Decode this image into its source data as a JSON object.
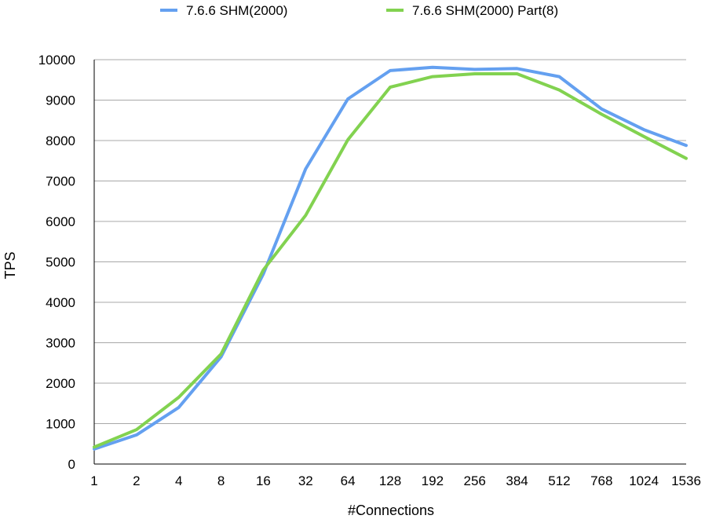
{
  "chart_data": {
    "type": "line",
    "xlabel": "#Connections",
    "ylabel": "TPS",
    "categories": [
      "1",
      "2",
      "4",
      "8",
      "16",
      "32",
      "64",
      "128",
      "192",
      "256",
      "384",
      "512",
      "768",
      "1024",
      "1536"
    ],
    "ylim": [
      0,
      10000
    ],
    "yticks": [
      "0",
      "1000",
      "2000",
      "3000",
      "4000",
      "5000",
      "6000",
      "7000",
      "8000",
      "9000",
      "10000"
    ],
    "grid": true,
    "legend_position": "top",
    "series": [
      {
        "name": "7.6.6 SHM(2000)",
        "color": "#64a0f0",
        "values": [
          370,
          720,
          1400,
          2650,
          4700,
          7300,
          9030,
          9730,
          9810,
          9760,
          9780,
          9580,
          8780,
          8270,
          7880
        ]
      },
      {
        "name": "7.6.6 SHM(2000) Part(8)",
        "color": "#82d250",
        "values": [
          420,
          850,
          1650,
          2720,
          4800,
          6150,
          8020,
          9320,
          9580,
          9650,
          9650,
          9250,
          8650,
          8100,
          7560
        ]
      }
    ]
  }
}
